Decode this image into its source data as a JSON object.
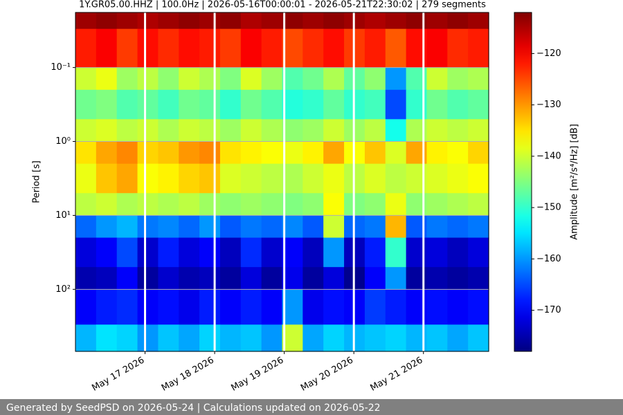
{
  "chart_data": {
    "type": "heatmap",
    "title": "1Y.GR05.00.HHZ | 100.0Hz | 2026-05-16T00:00:01 - 2026-05-21T22:30:02 | 279 segments",
    "y_label": "Period [s]",
    "colorbar_label": "Amplitude [m²/s⁴/Hz] [dB]",
    "colormap": "jet",
    "log_y": true,
    "grid": true,
    "xlim": [
      "2026-05-16T00:00:01",
      "2026-05-21T22:30:02"
    ],
    "xticks": [
      {
        "value": "2026-05-17",
        "label": "May 17 2026"
      },
      {
        "value": "2026-05-18",
        "label": "May 18 2026"
      },
      {
        "value": "2026-05-19",
        "label": "May 19 2026"
      },
      {
        "value": "2026-05-20",
        "label": "May 20 2026"
      },
      {
        "value": "2026-05-21",
        "label": "May 21 2026"
      }
    ],
    "ylim": [
      0.018,
      690
    ],
    "yticks": [
      {
        "value": 0.1,
        "label": "10⁻¹"
      },
      {
        "value": 1,
        "label": "10⁰"
      },
      {
        "value": 10,
        "label": "10¹"
      },
      {
        "value": 100,
        "label": "10²"
      }
    ],
    "clim": [
      -178,
      -112
    ],
    "cticks": [
      {
        "value": -120,
        "label": "−120"
      },
      {
        "value": -130,
        "label": "−130"
      },
      {
        "value": -140,
        "label": "−140"
      },
      {
        "value": -150,
        "label": "−150"
      },
      {
        "value": -160,
        "label": "−160"
      },
      {
        "value": -170,
        "label": "−170"
      }
    ],
    "period_edges": [
      0.018,
      0.03,
      0.1,
      0.2,
      0.5,
      1,
      2,
      5,
      10,
      20,
      50,
      100,
      300,
      690
    ],
    "z": [
      [
        -114,
        -113,
        -114,
        -115,
        -114,
        -113,
        -114,
        -113,
        -115,
        -114,
        -113,
        -114,
        -113,
        -114,
        -115,
        -114,
        -113,
        -114,
        -113,
        -114
      ],
      [
        -122,
        -120,
        -124,
        -121,
        -123,
        -121,
        -122,
        -124,
        -120,
        -122,
        -125,
        -123,
        -121,
        -124,
        -122,
        -126,
        -121,
        -120,
        -123,
        -122
      ],
      [
        -140,
        -138,
        -143,
        -141,
        -144,
        -140,
        -142,
        -145,
        -139,
        -143,
        -148,
        -146,
        -142,
        -147,
        -144,
        -160,
        -148,
        -140,
        -143,
        -142
      ],
      [
        -146,
        -145,
        -148,
        -147,
        -149,
        -146,
        -147,
        -150,
        -146,
        -148,
        -151,
        -150,
        -147,
        -150,
        -149,
        -165,
        -150,
        -146,
        -148,
        -147
      ],
      [
        -140,
        -139,
        -141,
        -140,
        -142,
        -140,
        -141,
        -143,
        -140,
        -142,
        -144,
        -143,
        -140,
        -143,
        -141,
        -152,
        -142,
        -140,
        -141,
        -140
      ],
      [
        -135,
        -131,
        -129,
        -134,
        -133,
        -130,
        -129,
        -135,
        -136,
        -137,
        -138,
        -136,
        -131,
        -137,
        -133,
        -139,
        -131,
        -136,
        -137,
        -134
      ],
      [
        -138,
        -133,
        -131,
        -137,
        -136,
        -134,
        -133,
        -139,
        -140,
        -141,
        -142,
        -140,
        -138,
        -141,
        -139,
        -141,
        -140,
        -139,
        -138,
        -137
      ],
      [
        -141,
        -140,
        -142,
        -141,
        -142,
        -141,
        -143,
        -144,
        -143,
        -144,
        -145,
        -144,
        -137,
        -145,
        -144,
        -138,
        -144,
        -143,
        -142,
        -141
      ],
      [
        -163,
        -160,
        -158,
        -162,
        -161,
        -163,
        -160,
        -164,
        -162,
        -163,
        -161,
        -164,
        -140,
        -163,
        -162,
        -132,
        -164,
        -162,
        -163,
        -162
      ],
      [
        -172,
        -170,
        -165,
        -173,
        -168,
        -172,
        -170,
        -174,
        -167,
        -173,
        -170,
        -174,
        -160,
        -174,
        -168,
        -150,
        -173,
        -172,
        -174,
        -172
      ],
      [
        -175,
        -174,
        -170,
        -176,
        -173,
        -175,
        -174,
        -176,
        -172,
        -176,
        -171,
        -176,
        -172,
        -177,
        -170,
        -160,
        -176,
        -175,
        -176,
        -175
      ],
      [
        -170,
        -168,
        -167,
        -170,
        -169,
        -171,
        -168,
        -170,
        -168,
        -170,
        -160,
        -171,
        -169,
        -170,
        -166,
        -168,
        -170,
        -169,
        -170,
        -169
      ],
      [
        -158,
        -155,
        -156,
        -160,
        -157,
        -159,
        -156,
        -158,
        -157,
        -160,
        -140,
        -159,
        -156,
        -158,
        -157,
        -156,
        -158,
        -157,
        -159,
        -157
      ]
    ]
  },
  "footer": "Generated by SeedPSD on 2026-05-24 | Calculations updated on 2026-05-22"
}
